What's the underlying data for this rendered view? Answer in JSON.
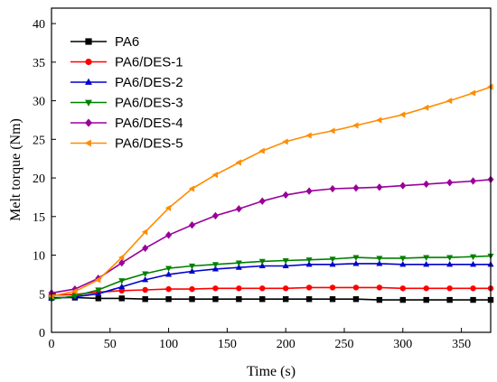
{
  "chart_data": {
    "type": "line",
    "xlabel": "Time (s)",
    "ylabel": "Melt torque (Nm)",
    "xlim": [
      0,
      375
    ],
    "ylim": [
      0,
      42
    ],
    "xticks": [
      0,
      50,
      100,
      150,
      200,
      250,
      300,
      350
    ],
    "yticks": [
      0,
      5,
      10,
      15,
      20,
      25,
      30,
      35,
      40
    ],
    "grid": false,
    "legend_position": "top-left",
    "series": [
      {
        "name": "PA6",
        "color": "#000000",
        "marker": "square",
        "x": [
          0,
          20,
          40,
          60,
          80,
          100,
          120,
          140,
          160,
          180,
          200,
          220,
          240,
          260,
          280,
          300,
          320,
          340,
          360,
          375
        ],
        "y": [
          4.5,
          4.5,
          4.4,
          4.4,
          4.3,
          4.3,
          4.3,
          4.3,
          4.3,
          4.3,
          4.3,
          4.3,
          4.3,
          4.3,
          4.2,
          4.2,
          4.2,
          4.2,
          4.2,
          4.2
        ]
      },
      {
        "name": "PA6/DES-1",
        "color": "#ff0000",
        "marker": "circle",
        "x": [
          0,
          20,
          40,
          60,
          80,
          100,
          120,
          140,
          160,
          180,
          200,
          220,
          240,
          260,
          280,
          300,
          320,
          340,
          360,
          375
        ],
        "y": [
          4.8,
          4.9,
          5.2,
          5.4,
          5.5,
          5.6,
          5.6,
          5.7,
          5.7,
          5.7,
          5.7,
          5.8,
          5.8,
          5.8,
          5.8,
          5.7,
          5.7,
          5.7,
          5.7,
          5.7
        ]
      },
      {
        "name": "PA6/DES-2",
        "color": "#0000cc",
        "marker": "triangle-up",
        "x": [
          0,
          20,
          40,
          60,
          80,
          100,
          120,
          140,
          160,
          180,
          200,
          220,
          240,
          260,
          280,
          300,
          320,
          340,
          360,
          375
        ],
        "y": [
          4.4,
          4.6,
          5.0,
          5.9,
          6.8,
          7.5,
          7.9,
          8.2,
          8.4,
          8.6,
          8.6,
          8.8,
          8.8,
          8.9,
          8.9,
          8.8,
          8.8,
          8.8,
          8.8,
          8.8
        ]
      },
      {
        "name": "PA6/DES-3",
        "color": "#008000",
        "marker": "triangle-down",
        "x": [
          0,
          20,
          40,
          60,
          80,
          100,
          120,
          140,
          160,
          180,
          200,
          220,
          240,
          260,
          280,
          300,
          320,
          340,
          360,
          375
        ],
        "y": [
          4.3,
          4.7,
          5.5,
          6.7,
          7.6,
          8.3,
          8.6,
          8.8,
          9.0,
          9.2,
          9.3,
          9.4,
          9.5,
          9.7,
          9.6,
          9.6,
          9.7,
          9.7,
          9.8,
          9.9
        ]
      },
      {
        "name": "PA6/DES-4",
        "color": "#990099",
        "marker": "diamond",
        "x": [
          0,
          20,
          40,
          60,
          80,
          100,
          120,
          140,
          160,
          180,
          200,
          220,
          240,
          260,
          280,
          300,
          320,
          340,
          360,
          375
        ],
        "y": [
          5.1,
          5.6,
          7.0,
          9.0,
          10.9,
          12.6,
          13.9,
          15.1,
          16.0,
          17.0,
          17.8,
          18.3,
          18.6,
          18.7,
          18.8,
          19.0,
          19.2,
          19.4,
          19.6,
          19.8
        ]
      },
      {
        "name": "PA6/DES-5",
        "color": "#ff8c00",
        "marker": "triangle-left",
        "x": [
          0,
          20,
          40,
          60,
          80,
          100,
          120,
          140,
          160,
          180,
          200,
          220,
          240,
          260,
          280,
          300,
          320,
          340,
          360,
          375
        ],
        "y": [
          4.7,
          5.3,
          6.8,
          9.7,
          13.0,
          16.1,
          18.6,
          20.4,
          22.0,
          23.5,
          24.7,
          25.5,
          26.1,
          26.8,
          27.5,
          28.2,
          29.1,
          30.0,
          31.0,
          31.8
        ]
      }
    ]
  }
}
